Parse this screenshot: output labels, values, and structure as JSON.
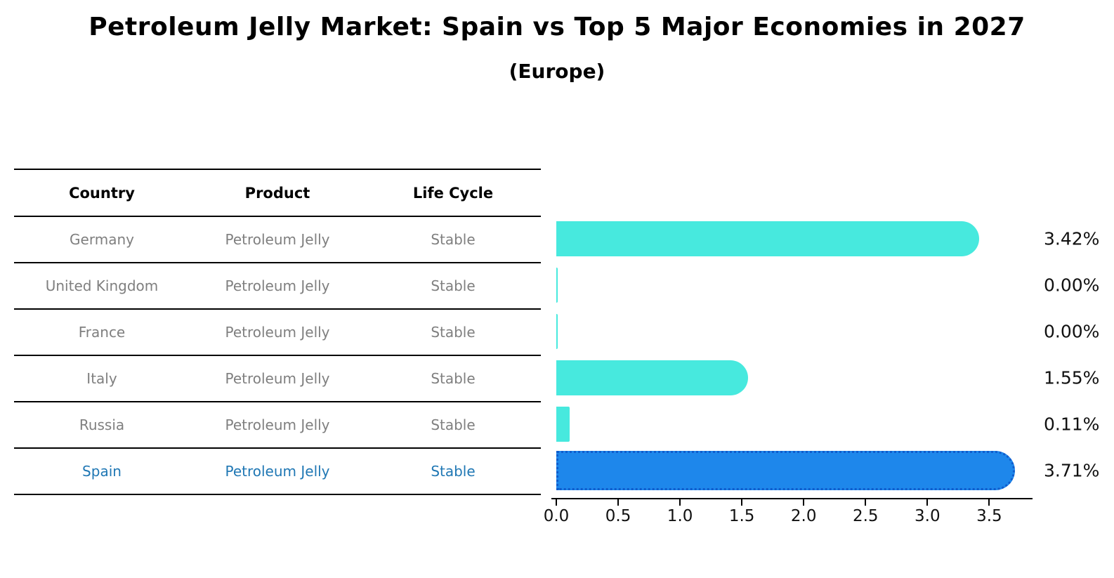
{
  "title": "Petroleum Jelly Market: Spain vs Top 5 Major Economies in 2027",
  "subtitle": "(Europe)",
  "table": {
    "headers": [
      "Country",
      "Product",
      "Life Cycle"
    ],
    "rows": [
      {
        "country": "Germany",
        "product": "Petroleum Jelly",
        "life_cycle": "Stable"
      },
      {
        "country": "United Kingdom",
        "product": "Petroleum Jelly",
        "life_cycle": "Stable"
      },
      {
        "country": "France",
        "product": "Petroleum Jelly",
        "life_cycle": "Stable"
      },
      {
        "country": "Italy",
        "product": "Petroleum Jelly",
        "life_cycle": "Stable"
      },
      {
        "country": "Russia",
        "product": "Petroleum Jelly",
        "life_cycle": "Stable"
      },
      {
        "country": "Spain",
        "product": "Petroleum Jelly",
        "life_cycle": "Stable"
      }
    ]
  },
  "chart_data": {
    "type": "bar",
    "orientation": "horizontal",
    "title": "Petroleum Jelly Market: Spain vs Top 5 Major Economies in 2027",
    "subtitle": "(Europe)",
    "categories": [
      "Germany",
      "United Kingdom",
      "France",
      "Italy",
      "Russia",
      "Spain"
    ],
    "values": [
      3.42,
      0.0,
      0.0,
      1.55,
      0.11,
      3.71
    ],
    "value_labels": [
      "3.42%",
      "0.00%",
      "0.00%",
      "1.55%",
      "0.11%",
      "3.71%"
    ],
    "xlim": [
      0,
      3.85
    ],
    "x_ticks": [
      "0.0",
      "0.5",
      "1.0",
      "1.5",
      "2.0",
      "2.5",
      "3.0",
      "3.5"
    ],
    "grid": false,
    "legend": false,
    "highlight_category": "Spain",
    "colors": {
      "bar": "#47e9de",
      "highlight_bar": "#1e87eb",
      "highlight_border": "#0f5ccd",
      "row_text": "#7f7f7f",
      "highlight_text": "#1f77b4",
      "axis": "#000000"
    }
  }
}
